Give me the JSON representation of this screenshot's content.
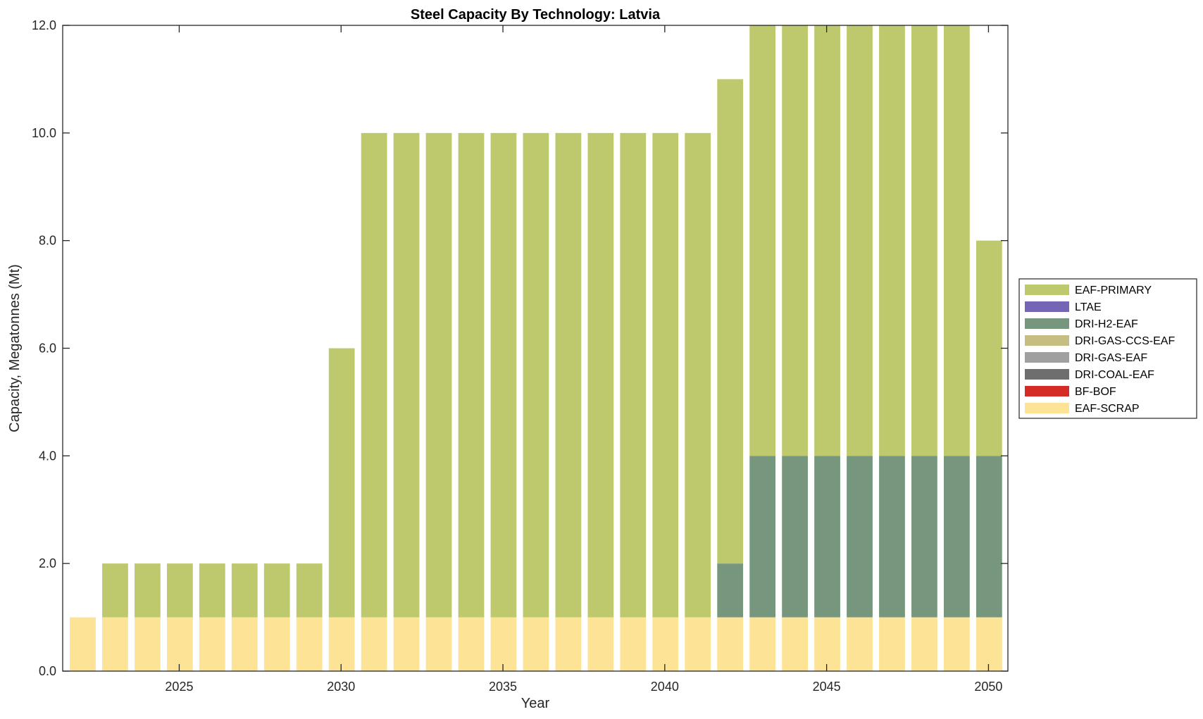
{
  "chart_data": {
    "type": "bar",
    "stacked": true,
    "title": "Steel Capacity By Technology: Latvia",
    "xlabel": "Year",
    "ylabel": "Capacity, Megatonnes (Mt)",
    "ylim": [
      0,
      12
    ],
    "xlim": [
      2021.4,
      2050.6
    ],
    "yticks": [
      0,
      2,
      4,
      6,
      8,
      10,
      12
    ],
    "ytick_labels": [
      "0.0",
      "2.0",
      "4.0",
      "6.0",
      "8.0",
      "10.0",
      "12.0"
    ],
    "xticks": [
      2025,
      2030,
      2035,
      2040,
      2045,
      2050
    ],
    "xtick_labels": [
      "2025",
      "2030",
      "2035",
      "2040",
      "2045",
      "2050"
    ],
    "grid": false,
    "legend_position": "right",
    "categories": [
      2022,
      2023,
      2024,
      2025,
      2026,
      2027,
      2028,
      2029,
      2030,
      2031,
      2032,
      2033,
      2034,
      2035,
      2036,
      2037,
      2038,
      2039,
      2040,
      2041,
      2042,
      2043,
      2044,
      2045,
      2046,
      2047,
      2048,
      2049,
      2050
    ],
    "series": [
      {
        "name": "EAF-SCRAP",
        "color": "#fde395",
        "values": [
          1,
          1,
          1,
          1,
          1,
          1,
          1,
          1,
          1,
          1,
          1,
          1,
          1,
          1,
          1,
          1,
          1,
          1,
          1,
          1,
          1,
          1,
          1,
          1,
          1,
          1,
          1,
          1,
          1
        ]
      },
      {
        "name": "BF-BOF",
        "color": "#d42b27",
        "values": [
          0,
          0,
          0,
          0,
          0,
          0,
          0,
          0,
          0,
          0,
          0,
          0,
          0,
          0,
          0,
          0,
          0,
          0,
          0,
          0,
          0,
          0,
          0,
          0,
          0,
          0,
          0,
          0,
          0
        ]
      },
      {
        "name": "DRI-COAL-EAF",
        "color": "#6e6e6e",
        "values": [
          0,
          0,
          0,
          0,
          0,
          0,
          0,
          0,
          0,
          0,
          0,
          0,
          0,
          0,
          0,
          0,
          0,
          0,
          0,
          0,
          0,
          0,
          0,
          0,
          0,
          0,
          0,
          0,
          0
        ]
      },
      {
        "name": "DRI-GAS-EAF",
        "color": "#a0a0a0",
        "values": [
          0,
          0,
          0,
          0,
          0,
          0,
          0,
          0,
          0,
          0,
          0,
          0,
          0,
          0,
          0,
          0,
          0,
          0,
          0,
          0,
          0,
          0,
          0,
          0,
          0,
          0,
          0,
          0,
          0
        ]
      },
      {
        "name": "DRI-GAS-CCS-EAF",
        "color": "#c6bd82",
        "values": [
          0,
          0,
          0,
          0,
          0,
          0,
          0,
          0,
          0,
          0,
          0,
          0,
          0,
          0,
          0,
          0,
          0,
          0,
          0,
          0,
          0,
          0,
          0,
          0,
          0,
          0,
          0,
          0,
          0
        ]
      },
      {
        "name": "DRI-H2-EAF",
        "color": "#76977d",
        "values": [
          0,
          0,
          0,
          0,
          0,
          0,
          0,
          0,
          0,
          0,
          0,
          0,
          0,
          0,
          0,
          0,
          0,
          0,
          0,
          0,
          1,
          3,
          3,
          3,
          3,
          3,
          3,
          3,
          3
        ]
      },
      {
        "name": "LTAE",
        "color": "#7466b5",
        "values": [
          0,
          0,
          0,
          0,
          0,
          0,
          0,
          0,
          0,
          0,
          0,
          0,
          0,
          0,
          0,
          0,
          0,
          0,
          0,
          0,
          0,
          0,
          0,
          0,
          0,
          0,
          0,
          0,
          0
        ]
      },
      {
        "name": "EAF-PRIMARY",
        "color": "#bec86c",
        "values": [
          0,
          1,
          1,
          1,
          1,
          1,
          1,
          1,
          5,
          9,
          9,
          9,
          9,
          9,
          9,
          9,
          9,
          9,
          9,
          9,
          9,
          8,
          8,
          8,
          8,
          8,
          8,
          8,
          4
        ]
      }
    ],
    "legend_order": [
      "EAF-PRIMARY",
      "LTAE",
      "DRI-H2-EAF",
      "DRI-GAS-CCS-EAF",
      "DRI-GAS-EAF",
      "DRI-COAL-EAF",
      "BF-BOF",
      "EAF-SCRAP"
    ],
    "note": "Bars 2043-2049 reach the top of the axis (12.0) and appear clipped"
  }
}
